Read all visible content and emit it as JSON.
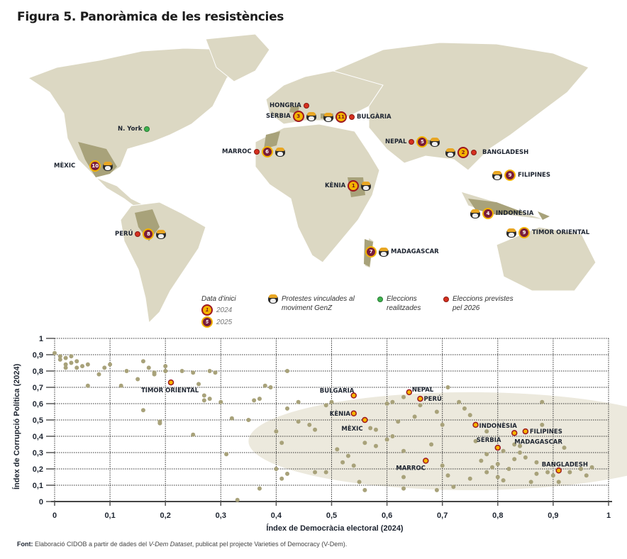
{
  "title": "Figura 5. Panoràmica de les resistències",
  "colors": {
    "land": "#dcd8c3",
    "highlight_land": "#a8a27a",
    "y2024_fill": "#f5b400",
    "y2024_border": "#9e1620",
    "y2025_fill": "#7a1d3a",
    "y2025_border": "#f3b300",
    "elections_done": "#3fb34f",
    "elections_planned": "#d6301f",
    "scatter_point": "#a8a27a",
    "ellipse": "#ece9dd"
  },
  "map": {
    "markers": [
      {
        "label": "HONGRIA",
        "number": null,
        "year": null,
        "genz": false,
        "planned_election": true
      },
      {
        "label": "SÈRBIA",
        "number": "3",
        "year": "2024",
        "genz": true,
        "planned_election": false
      },
      {
        "label": "BULGÀRIA",
        "number": "11",
        "year": "2024",
        "genz": true,
        "planned_election": true
      },
      {
        "label": "N. York",
        "number": null,
        "year": null,
        "genz": false,
        "held_election": true
      },
      {
        "label": "MARROC",
        "number": "6",
        "year": "2025",
        "genz": true,
        "planned_election": true
      },
      {
        "label": "MÈXIC",
        "number": "10",
        "year": "2025",
        "genz": true,
        "planned_election": false
      },
      {
        "label": "NEPAL",
        "number": "5",
        "year": "2025",
        "genz": true,
        "planned_election": true
      },
      {
        "label": "BANGLADESH",
        "number": "2",
        "year": "2024",
        "genz": true,
        "planned_election": true
      },
      {
        "label": "FILIPINES",
        "number": "9",
        "year": "2025",
        "genz": true,
        "planned_election": false
      },
      {
        "label": "KÈNIA",
        "number": "1",
        "year": "2024",
        "genz": true,
        "planned_election": false
      },
      {
        "label": "INDONÈSIA",
        "number": "4",
        "year": "2025",
        "genz": true,
        "planned_election": false
      },
      {
        "label": "TIMOR ORIENTAL",
        "number": "9",
        "year": "2025",
        "genz": true,
        "planned_election": false
      },
      {
        "label": "PERÚ",
        "number": "8",
        "year": "2025",
        "genz": true,
        "planned_election": true
      },
      {
        "label": "MADAGASCAR",
        "number": "7",
        "year": "2025",
        "genz": true,
        "planned_election": false
      }
    ],
    "legend": {
      "start_date_title": "Data d'inici",
      "y2024_num": "1",
      "y2024_label": "2024",
      "y2025_num": "5",
      "y2025_label": "2025",
      "genz_line1": "Protestes vinculades al",
      "genz_line2": "moviment GenZ",
      "held_line1": "Eleccions",
      "held_line2": "realitzades",
      "planned_line1": "Eleccions previstes",
      "planned_line2": "pel 2026"
    }
  },
  "chart_data": {
    "type": "scatter",
    "title": "",
    "xlabel": "Índex de Democràcia electoral (2024)",
    "ylabel": "Índex de Corrupció Política (2024)",
    "xlim": [
      0,
      1
    ],
    "ylim": [
      0,
      1
    ],
    "xticks": [
      "0",
      "0,1",
      "0,2",
      "0,3",
      "0,4",
      "0,5",
      "0,6",
      "0,7",
      "0,8",
      "0,9",
      "1"
    ],
    "yticks": [
      "0",
      "0,1",
      "0,2",
      "0,3",
      "0,4",
      "0,5",
      "0,6",
      "0,7",
      "0,8",
      "0,9",
      "1"
    ],
    "grid": true,
    "highlighted": [
      {
        "label": "TIMOR ORIENTAL",
        "x": 0.21,
        "y": 0.73
      },
      {
        "label": "BULGÀRIA",
        "x": 0.54,
        "y": 0.65
      },
      {
        "label": "KÈNIA",
        "x": 0.54,
        "y": 0.54
      },
      {
        "label": "MÈXIC",
        "x": 0.56,
        "y": 0.5
      },
      {
        "label": "NEPAL",
        "x": 0.64,
        "y": 0.67
      },
      {
        "label": "PERÚ",
        "x": 0.66,
        "y": 0.63
      },
      {
        "label": "INDONÈSIA",
        "x": 0.76,
        "y": 0.47
      },
      {
        "label": "FILIPINES",
        "x": 0.85,
        "y": 0.43
      },
      {
        "label": "MADAGASCAR",
        "x": 0.83,
        "y": 0.42
      },
      {
        "label": "SÈRBIA",
        "x": 0.8,
        "y": 0.33
      },
      {
        "label": "MARROC",
        "x": 0.67,
        "y": 0.25
      },
      {
        "label": "BANGLADESH",
        "x": 0.91,
        "y": 0.19
      }
    ],
    "others": [
      [
        0.0,
        0.91
      ],
      [
        0.01,
        0.89
      ],
      [
        0.01,
        0.87
      ],
      [
        0.02,
        0.88
      ],
      [
        0.02,
        0.84
      ],
      [
        0.03,
        0.89
      ],
      [
        0.02,
        0.82
      ],
      [
        0.03,
        0.85
      ],
      [
        0.04,
        0.86
      ],
      [
        0.05,
        0.83
      ],
      [
        0.06,
        0.84
      ],
      [
        0.04,
        0.82
      ],
      [
        0.06,
        0.71
      ],
      [
        0.09,
        0.82
      ],
      [
        0.1,
        0.84
      ],
      [
        0.08,
        0.78
      ],
      [
        0.12,
        0.71
      ],
      [
        0.13,
        0.8
      ],
      [
        0.16,
        0.86
      ],
      [
        0.17,
        0.82
      ],
      [
        0.18,
        0.79
      ],
      [
        0.18,
        0.78
      ],
      [
        0.15,
        0.75
      ],
      [
        0.16,
        0.56
      ],
      [
        0.19,
        0.49
      ],
      [
        0.19,
        0.48
      ],
      [
        0.2,
        0.8
      ],
      [
        0.2,
        0.83
      ],
      [
        0.23,
        0.8
      ],
      [
        0.25,
        0.79
      ],
      [
        0.26,
        0.72
      ],
      [
        0.28,
        0.8
      ],
      [
        0.27,
        0.65
      ],
      [
        0.27,
        0.62
      ],
      [
        0.28,
        0.63
      ],
      [
        0.25,
        0.41
      ],
      [
        0.29,
        0.79
      ],
      [
        0.3,
        0.61
      ],
      [
        0.32,
        0.51
      ],
      [
        0.31,
        0.29
      ],
      [
        0.36,
        0.62
      ],
      [
        0.37,
        0.63
      ],
      [
        0.38,
        0.71
      ],
      [
        0.39,
        0.7
      ],
      [
        0.35,
        0.5
      ],
      [
        0.4,
        0.43
      ],
      [
        0.41,
        0.36
      ],
      [
        0.42,
        0.8
      ],
      [
        0.42,
        0.57
      ],
      [
        0.44,
        0.61
      ],
      [
        0.44,
        0.49
      ],
      [
        0.4,
        0.2
      ],
      [
        0.41,
        0.14
      ],
      [
        0.42,
        0.17
      ],
      [
        0.37,
        0.08
      ],
      [
        0.33,
        0.01
      ],
      [
        0.46,
        0.47
      ],
      [
        0.47,
        0.44
      ],
      [
        0.49,
        0.59
      ],
      [
        0.5,
        0.61
      ],
      [
        0.51,
        0.32
      ],
      [
        0.52,
        0.24
      ],
      [
        0.53,
        0.28
      ],
      [
        0.56,
        0.36
      ],
      [
        0.54,
        0.22
      ],
      [
        0.49,
        0.18
      ],
      [
        0.47,
        0.18
      ],
      [
        0.55,
        0.12
      ],
      [
        0.58,
        0.44
      ],
      [
        0.58,
        0.34
      ],
      [
        0.6,
        0.38
      ],
      [
        0.61,
        0.4
      ],
      [
        0.62,
        0.49
      ],
      [
        0.63,
        0.31
      ],
      [
        0.63,
        0.08
      ],
      [
        0.65,
        0.52
      ],
      [
        0.66,
        0.59
      ],
      [
        0.69,
        0.55
      ],
      [
        0.7,
        0.47
      ],
      [
        0.7,
        0.22
      ],
      [
        0.71,
        0.16
      ],
      [
        0.71,
        0.7
      ],
      [
        0.73,
        0.61
      ],
      [
        0.74,
        0.57
      ],
      [
        0.75,
        0.53
      ],
      [
        0.76,
        0.37
      ],
      [
        0.77,
        0.25
      ],
      [
        0.78,
        0.43
      ],
      [
        0.78,
        0.18
      ],
      [
        0.79,
        0.21
      ],
      [
        0.8,
        0.15
      ],
      [
        0.81,
        0.13
      ],
      [
        0.82,
        0.2
      ],
      [
        0.83,
        0.26
      ],
      [
        0.83,
        0.35
      ],
      [
        0.84,
        0.34
      ],
      [
        0.84,
        0.3
      ],
      [
        0.86,
        0.12
      ],
      [
        0.87,
        0.17
      ],
      [
        0.88,
        0.61
      ],
      [
        0.88,
        0.47
      ],
      [
        0.89,
        0.18
      ],
      [
        0.9,
        0.16
      ],
      [
        0.91,
        0.12
      ],
      [
        0.92,
        0.33
      ],
      [
        0.93,
        0.18
      ],
      [
        0.95,
        0.2
      ],
      [
        0.96,
        0.16
      ],
      [
        0.97,
        0.21
      ],
      [
        0.69,
        0.07
      ],
      [
        0.72,
        0.09
      ],
      [
        0.75,
        0.14
      ],
      [
        0.78,
        0.29
      ],
      [
        0.8,
        0.23
      ],
      [
        0.81,
        0.31
      ],
      [
        0.85,
        0.27
      ],
      [
        0.87,
        0.24
      ],
      [
        0.68,
        0.35
      ],
      [
        0.6,
        0.6
      ],
      [
        0.61,
        0.61
      ],
      [
        0.63,
        0.64
      ],
      [
        0.57,
        0.45
      ],
      [
        0.56,
        0.07
      ],
      [
        0.63,
        0.15
      ]
    ],
    "ellipse": {
      "cx": 0.75,
      "cy": 0.37,
      "rx": 0.4,
      "ry": 0.3
    }
  },
  "source": {
    "label": "Font:",
    "text_before": " Elaboració CIDOB a partir de dades del ",
    "italic": "V-Dem Dataset",
    "text_after": ", publicat pel projecte Varieties of Democracy (V-Dem)."
  }
}
